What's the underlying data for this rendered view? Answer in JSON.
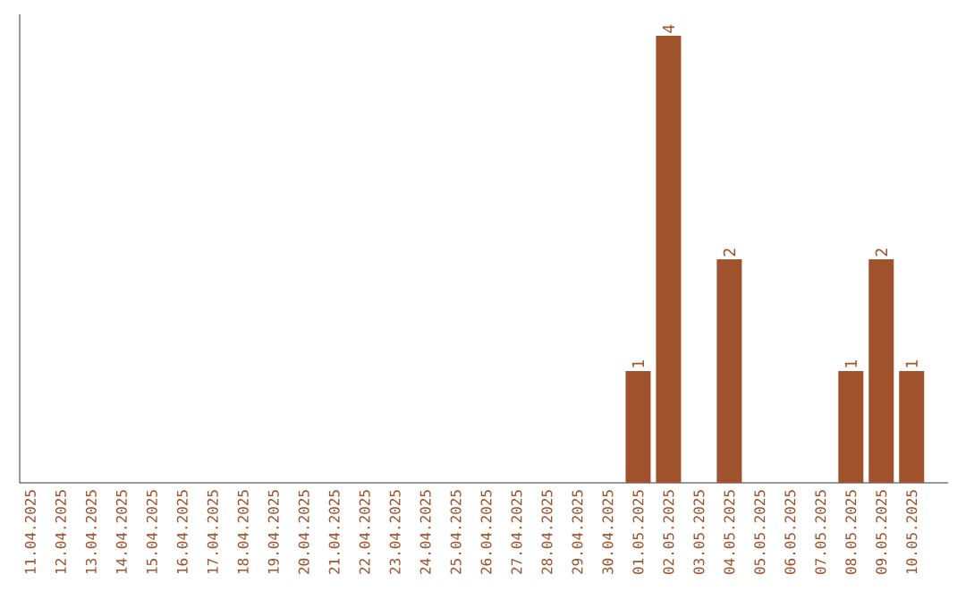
{
  "chart_data": {
    "type": "bar",
    "color": "#a0522d",
    "categories": [
      "11.04.2025",
      "12.04.2025",
      "13.04.2025",
      "14.04.2025",
      "15.04.2025",
      "16.04.2025",
      "17.04.2025",
      "18.04.2025",
      "19.04.2025",
      "20.04.2025",
      "21.04.2025",
      "22.04.2025",
      "23.04.2025",
      "24.04.2025",
      "25.04.2025",
      "26.04.2025",
      "27.04.2025",
      "28.04.2025",
      "29.04.2025",
      "30.04.2025",
      "01.05.2025",
      "02.05.2025",
      "03.05.2025",
      "04.05.2025",
      "05.05.2025",
      "06.05.2025",
      "07.05.2025",
      "08.05.2025",
      "09.05.2025",
      "10.05.2025"
    ],
    "values": [
      null,
      null,
      null,
      null,
      null,
      null,
      null,
      null,
      null,
      null,
      null,
      null,
      null,
      null,
      null,
      null,
      null,
      null,
      null,
      null,
      1,
      4,
      null,
      2,
      null,
      null,
      null,
      1,
      2,
      1
    ],
    "value_labels": [
      null,
      null,
      null,
      null,
      null,
      null,
      null,
      null,
      null,
      null,
      null,
      null,
      null,
      null,
      null,
      null,
      null,
      null,
      null,
      null,
      "1",
      "4",
      null,
      "2",
      null,
      null,
      null,
      "1",
      "2",
      "1"
    ]
  }
}
